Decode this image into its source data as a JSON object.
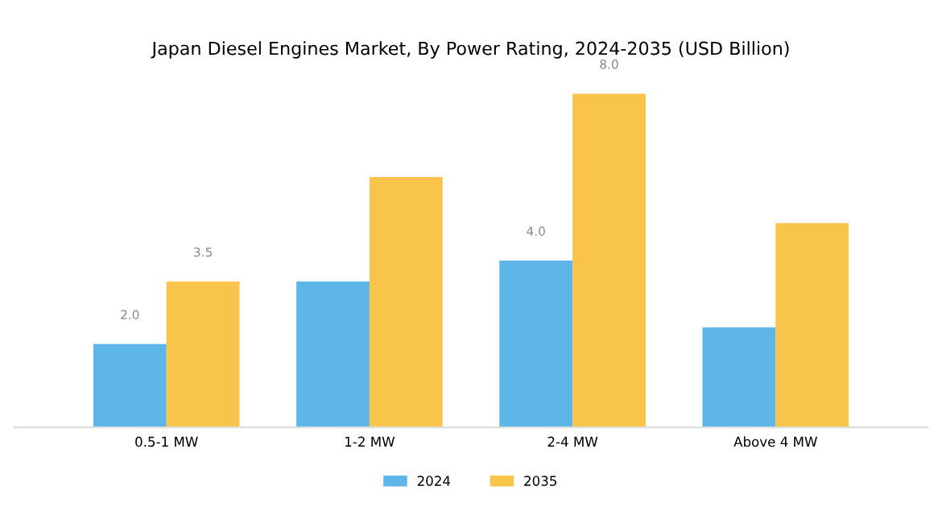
{
  "chart_data": {
    "type": "bar",
    "title": "Japan Diesel Engines Market, By Power Rating, 2024-2035 (USD Billion)",
    "categories": [
      "0.5-1 MW",
      "1-2 MW",
      "2-4 MW",
      "Above 4 MW"
    ],
    "series": [
      {
        "name": "2024",
        "color": "#5eb5e8",
        "values": [
          2.0,
          3.5,
          4.0,
          2.4
        ],
        "value_labels": [
          "2.0",
          null,
          "4.0",
          null
        ]
      },
      {
        "name": "2035",
        "color": "#f9c44a",
        "values": [
          3.5,
          6.0,
          8.0,
          4.9
        ],
        "value_labels": [
          "3.5",
          null,
          "8.0",
          null
        ]
      }
    ],
    "grid": false,
    "legend": "bottom"
  }
}
